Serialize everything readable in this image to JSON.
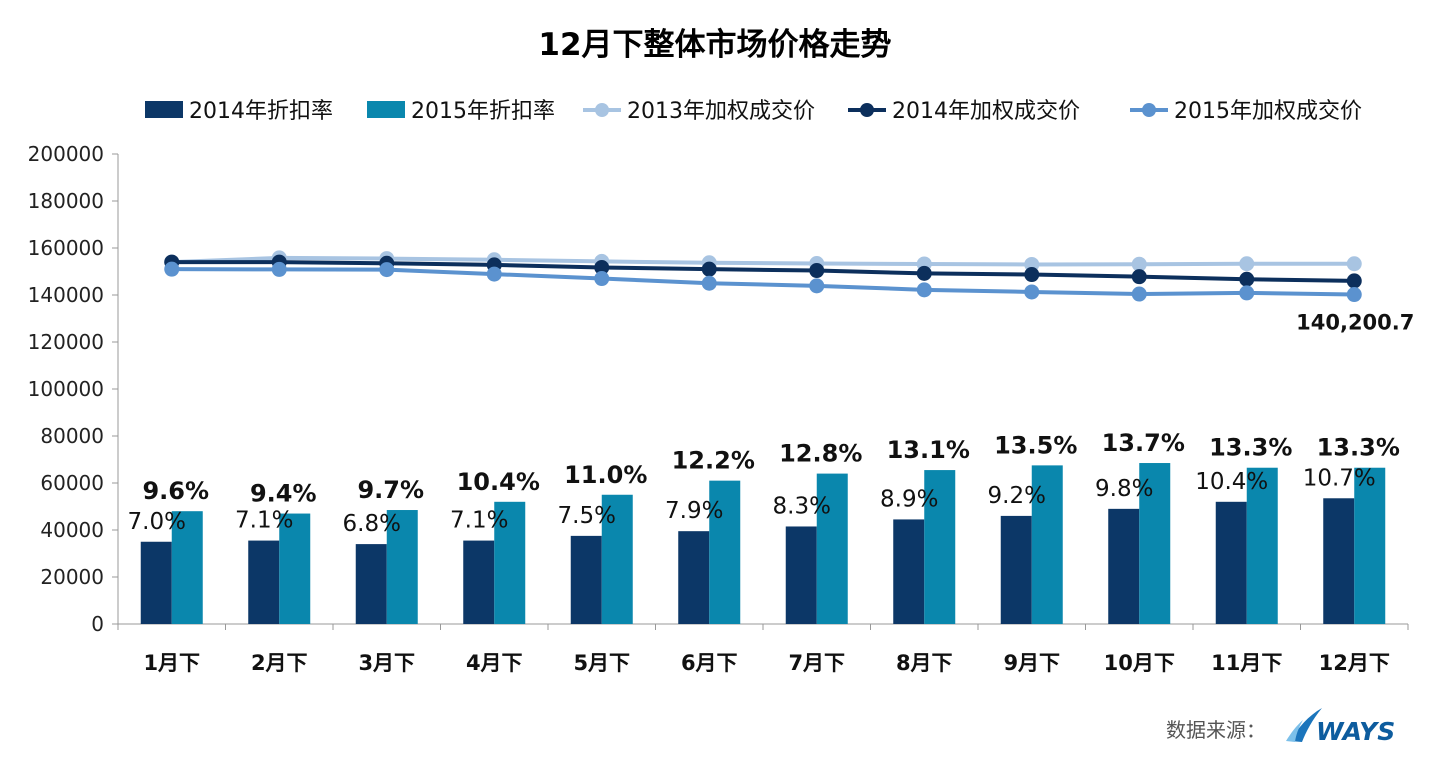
{
  "chart_data": {
    "type": "bar",
    "title": "12月下整体市场价格走势",
    "xlabel": "",
    "ylabel": "",
    "ylim": [
      0,
      200000
    ],
    "yticks": [
      0,
      20000,
      40000,
      60000,
      80000,
      100000,
      120000,
      140000,
      160000,
      180000,
      200000
    ],
    "categories": [
      "1月下",
      "2月下",
      "3月下",
      "4月下",
      "5月下",
      "6月下",
      "7月下",
      "8月下",
      "9月下",
      "10月下",
      "11月下",
      "12月下"
    ],
    "series": [
      {
        "name": "2014年折扣率",
        "kind": "bar",
        "color": "#0c3767",
        "values": [
          35000,
          35500,
          34000,
          35500,
          37500,
          39500,
          41500,
          44500,
          46000,
          49000,
          52000,
          53500
        ],
        "labels": [
          "7.0%",
          "7.1%",
          "6.8%",
          "7.1%",
          "7.5%",
          "7.9%",
          "8.3%",
          "8.9%",
          "9.2%",
          "9.8%",
          "10.4%",
          "10.7%"
        ]
      },
      {
        "name": "2015年折扣率",
        "kind": "bar",
        "color": "#0a87ad",
        "values": [
          48000,
          47000,
          48500,
          52000,
          55000,
          61000,
          64000,
          65500,
          67500,
          68500,
          66500,
          66500
        ],
        "labels": [
          "9.6%",
          "9.4%",
          "9.7%",
          "10.4%",
          "11.0%",
          "12.2%",
          "12.8%",
          "13.1%",
          "13.5%",
          "13.7%",
          "13.3%",
          "13.3%"
        ]
      },
      {
        "name": "2013年加权成交价",
        "kind": "line",
        "color": "#a8c4e2",
        "values": [
          154000,
          155800,
          155500,
          155000,
          154300,
          153700,
          153400,
          153200,
          153000,
          153100,
          153300,
          153300
        ]
      },
      {
        "name": "2014年加权成交价",
        "kind": "line",
        "color": "#0c2f5c",
        "values": [
          154000,
          154000,
          153500,
          152800,
          151700,
          151000,
          150400,
          149200,
          148700,
          147800,
          146700,
          146000
        ]
      },
      {
        "name": "2015年加权成交价",
        "kind": "line",
        "color": "#5b92cf",
        "values": [
          151000,
          150900,
          150800,
          148900,
          147000,
          145000,
          143900,
          142200,
          141300,
          140400,
          140900,
          140200.7
        ]
      }
    ],
    "annotations": [
      {
        "text": "140,200.7",
        "series": "2015年加权成交价",
        "category": "12月下"
      }
    ],
    "legend": "top"
  },
  "footer": {
    "source_label": "数据来源：",
    "logo_text": "WAYS"
  }
}
